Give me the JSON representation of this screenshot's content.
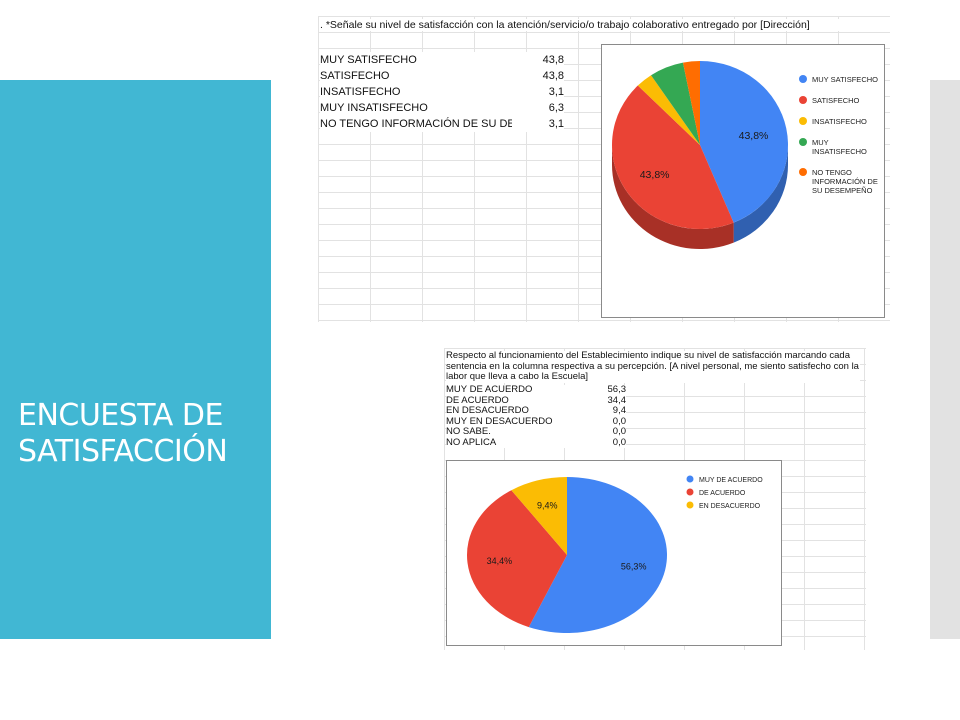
{
  "slide": {
    "title": "ENCUESTA DE SATISFACCIÓN"
  },
  "colors": {
    "blue": "#4285f4",
    "red": "#ea4335",
    "yellow": "#fbbc04",
    "green": "#34a853",
    "orange": "#ff6d01"
  },
  "chart_data": [
    {
      "type": "pie",
      "title": ". *Señale su nivel de satisfacción con la atención/servicio/o trabajo colaborativo entregado por [Dirección]",
      "table": [
        {
          "label": "MUY SATISFECHO",
          "value": "43,8"
        },
        {
          "label": "SATISFECHO",
          "value": "43,8"
        },
        {
          "label": "INSATISFECHO",
          "value": "3,1"
        },
        {
          "label": "MUY INSATISFECHO",
          "value": "6,3"
        },
        {
          "label": "NO TENGO INFORMACIÓN DE SU DESEMPEÑO",
          "value": "3,1"
        }
      ],
      "categories": [
        "MUY SATISFECHO",
        "SATISFECHO",
        "INSATISFECHO",
        "MUY INSATISFECHO",
        "NO TENGO INFORMACIÓN DE SU DESEMPEÑO"
      ],
      "legend": [
        "MUY SATISFECHO",
        "SATISFECHO",
        "INSATISFECHO",
        "MUY\nINSATISFECHO",
        "NO TENGO\nINFORMACIÓN DE\nSU DESEMPEÑO"
      ],
      "values": [
        43.8,
        43.8,
        3.1,
        6.3,
        3.1
      ],
      "slice_labels": [
        "43,8%",
        "43,8%",
        "",
        "",
        ""
      ],
      "colors": [
        "#4285f4",
        "#ea4335",
        "#fbbc04",
        "#34a853",
        "#ff6d01"
      ],
      "style": "3d",
      "legend_position": "right"
    },
    {
      "type": "pie",
      "title": "Respecto al funcionamiento del Establecimiento indique su nivel de satisfacción marcando cada sentencia en la columna respectiva a su percepción. [A nivel personal, me siento satisfecho con la labor que lleva a cabo la Escuela]",
      "table": [
        {
          "label": "MUY DE ACUERDO",
          "value": "56,3"
        },
        {
          "label": "DE ACUERDO",
          "value": "34,4"
        },
        {
          "label": "EN DESACUERDO",
          "value": "9,4"
        },
        {
          "label": "MUY EN DESACUERDO",
          "value": "0,0"
        },
        {
          "label": "NO SABE.",
          "value": "0,0"
        },
        {
          "label": "NO APLICA",
          "value": "0,0"
        }
      ],
      "categories": [
        "MUY DE ACUERDO",
        "DE ACUERDO",
        "EN DESACUERDO"
      ],
      "legend": [
        "MUY DE ACUERDO",
        "DE ACUERDO",
        "EN DESACUERDO"
      ],
      "values": [
        56.3,
        34.4,
        9.4
      ],
      "slice_labels": [
        "56,3%",
        "34,4%",
        "9,4%"
      ],
      "colors": [
        "#4285f4",
        "#ea4335",
        "#fbbc04"
      ],
      "style": "2d",
      "legend_position": "top-right"
    }
  ]
}
